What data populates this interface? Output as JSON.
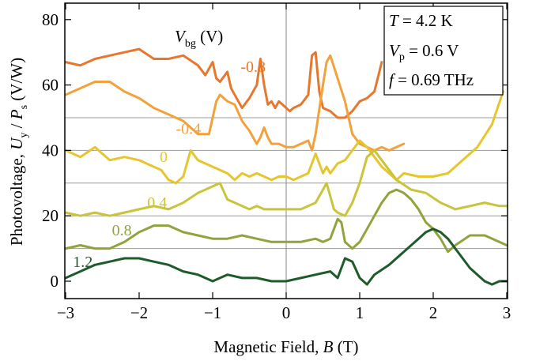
{
  "chart_data": {
    "type": "line",
    "xlabel_text": "Magnetic Field, ",
    "xlabel_var": "B",
    "xlabel_unit": " (T)",
    "ylabel_text": "Photovoltage, ",
    "ylabel_var1": "U",
    "ylabel_sub1": "y",
    "ylabel_sep": " / ",
    "ylabel_var2": "P",
    "ylabel_sub2": "s",
    "ylabel_unit": " (V/W)",
    "xlim": [
      -3,
      3
    ],
    "ylim": [
      -3,
      86
    ],
    "xticks": [
      -3,
      -2,
      -1,
      0,
      1,
      2,
      3
    ],
    "xtick_labels": [
      "−3",
      "−2",
      "−1",
      "0",
      "1",
      "2",
      "3"
    ],
    "yticks": [
      0,
      20,
      40,
      60,
      80
    ],
    "ytick_labels": [
      "0",
      "20",
      "40",
      "60",
      "80"
    ],
    "baselines": [
      10,
      20,
      30,
      40,
      50
    ],
    "legend_title_var": "V",
    "legend_title_sub": "bg",
    "legend_title_unit": " (V)",
    "params": [
      {
        "var": "T",
        "sub": "",
        "value": " = 4.2 K"
      },
      {
        "var": "V",
        "sub": "p",
        "value": " = 0.6 V"
      },
      {
        "var": "f",
        "sub": "",
        "value": " = 0.69 THz"
      }
    ],
    "series": [
      {
        "name": "-0.8",
        "color": "#e8772e",
        "label_at": [
          -0.62,
          64
        ],
        "x": [
          -3,
          -2.8,
          -2.6,
          -2.4,
          -2.2,
          -2.0,
          -1.8,
          -1.6,
          -1.4,
          -1.2,
          -1.1,
          -1.0,
          -0.95,
          -0.9,
          -0.8,
          -0.75,
          -0.7,
          -0.6,
          -0.5,
          -0.4,
          -0.35,
          -0.3,
          -0.25,
          -0.2,
          -0.15,
          -0.1,
          -0.05,
          0,
          0.05,
          0.1,
          0.2,
          0.3,
          0.35,
          0.4,
          0.45,
          0.5,
          0.6,
          0.7,
          0.8,
          0.9,
          1.0,
          1.1,
          1.2,
          1.3
        ],
        "y": [
          67,
          66,
          68,
          69,
          70,
          71,
          68,
          68,
          69,
          66,
          63,
          67,
          62,
          61,
          64,
          59,
          57,
          53,
          56,
          60,
          68,
          60,
          54,
          55,
          53,
          55,
          54,
          53,
          52,
          53,
          54,
          57,
          69,
          70,
          58,
          53,
          52,
          50,
          50,
          52,
          55,
          56,
          58,
          67
        ]
      },
      {
        "name": "-0.4",
        "color": "#f2a23c",
        "label_at": [
          -1.5,
          45
        ],
        "x": [
          -3,
          -2.8,
          -2.6,
          -2.4,
          -2.2,
          -2.0,
          -1.8,
          -1.6,
          -1.4,
          -1.2,
          -1.05,
          -1.0,
          -0.95,
          -0.9,
          -0.8,
          -0.7,
          -0.6,
          -0.5,
          -0.4,
          -0.35,
          -0.3,
          -0.25,
          -0.2,
          -0.1,
          0,
          0.1,
          0.2,
          0.3,
          0.35,
          0.4,
          0.5,
          0.55,
          0.6,
          0.7,
          0.8,
          0.9,
          1.0,
          1.1,
          1.2,
          1.3,
          1.4,
          1.5,
          1.6
        ],
        "y": [
          57,
          59,
          61,
          61,
          58,
          56,
          53,
          51,
          49,
          45,
          45,
          50,
          55,
          57,
          55,
          54,
          49,
          46,
          42,
          44,
          47,
          44,
          42,
          42,
          41,
          41,
          42,
          43,
          40,
          45,
          60,
          67,
          69,
          62,
          55,
          45,
          42,
          41,
          40,
          41,
          40,
          41,
          42
        ]
      },
      {
        "name": "0",
        "color": "#e6c62e",
        "label_at": [
          -1.72,
          36.5
        ],
        "x": [
          -3,
          -2.8,
          -2.6,
          -2.4,
          -2.2,
          -2.0,
          -1.9,
          -1.8,
          -1.7,
          -1.6,
          -1.5,
          -1.4,
          -1.3,
          -1.2,
          -1.1,
          -1.0,
          -0.9,
          -0.8,
          -0.7,
          -0.6,
          -0.5,
          -0.4,
          -0.3,
          -0.2,
          -0.1,
          0,
          0.1,
          0.2,
          0.3,
          0.4,
          0.5,
          0.55,
          0.6,
          0.7,
          0.8,
          0.9,
          1.0,
          1.1,
          1.2,
          1.3,
          1.4,
          1.5,
          1.6,
          1.8,
          2.0,
          2.2,
          2.4,
          2.6,
          2.8,
          2.95
        ],
        "y": [
          40,
          38,
          41,
          37,
          38,
          37,
          36,
          35,
          34,
          31,
          30,
          32,
          40,
          37,
          36,
          35,
          34,
          33,
          31,
          33,
          32,
          33,
          32,
          31,
          32,
          32,
          31,
          32,
          33,
          39,
          33,
          35,
          33,
          36,
          37,
          40,
          43,
          41,
          38,
          35,
          33,
          31,
          33,
          32,
          32,
          33,
          37,
          41,
          48,
          58
        ]
      },
      {
        "name": "0.4",
        "color": "#c9c43a",
        "label_at": [
          -1.89,
          22.5
        ],
        "x": [
          -3,
          -2.8,
          -2.6,
          -2.4,
          -2.2,
          -2.0,
          -1.8,
          -1.6,
          -1.4,
          -1.2,
          -1.1,
          -1.0,
          -0.9,
          -0.8,
          -0.7,
          -0.6,
          -0.5,
          -0.4,
          -0.3,
          -0.2,
          -0.1,
          0,
          0.1,
          0.2,
          0.3,
          0.4,
          0.5,
          0.55,
          0.6,
          0.65,
          0.7,
          0.8,
          0.9,
          1.0,
          1.1,
          1.2,
          1.3,
          1.5,
          1.7,
          1.9,
          2.1,
          2.3,
          2.5,
          2.7,
          2.9,
          3.0
        ],
        "y": [
          21,
          20,
          21,
          20,
          21,
          22,
          23,
          22,
          24,
          27,
          28,
          29,
          30,
          25,
          24,
          23,
          22,
          23,
          22,
          22,
          22,
          22,
          22,
          22,
          23,
          24,
          28,
          30,
          26,
          22,
          21,
          20,
          24,
          30,
          38,
          40,
          37,
          31,
          28,
          27,
          24,
          22,
          23,
          24,
          23,
          23
        ]
      },
      {
        "name": "0.8",
        "color": "#8fa43c",
        "label_at": [
          -2.37,
          14
        ],
        "x": [
          -3,
          -2.8,
          -2.6,
          -2.4,
          -2.2,
          -2.0,
          -1.8,
          -1.6,
          -1.4,
          -1.2,
          -1.0,
          -0.8,
          -0.6,
          -0.4,
          -0.2,
          0,
          0.2,
          0.4,
          0.5,
          0.6,
          0.7,
          0.75,
          0.8,
          0.9,
          1.0,
          1.1,
          1.2,
          1.3,
          1.4,
          1.5,
          1.6,
          1.7,
          1.8,
          1.9,
          2.0,
          2.1,
          2.2,
          2.3,
          2.5,
          2.7,
          2.9,
          3.0
        ],
        "y": [
          10,
          11,
          10,
          10,
          12,
          15,
          17,
          17,
          15,
          14,
          13,
          13,
          14,
          13,
          12,
          12,
          12,
          13,
          12,
          13,
          19,
          18,
          12,
          10,
          12,
          16,
          20,
          24,
          27,
          28,
          27,
          25,
          22,
          18,
          16,
          13,
          9,
          11,
          14,
          14,
          12,
          11
        ]
      },
      {
        "name": "1.2",
        "color": "#1e5b2b",
        "label_at": [
          -2.9,
          4.3
        ],
        "x": [
          -3,
          -2.8,
          -2.6,
          -2.4,
          -2.2,
          -2.0,
          -1.8,
          -1.6,
          -1.4,
          -1.2,
          -1.0,
          -0.8,
          -0.6,
          -0.4,
          -0.2,
          0,
          0.2,
          0.4,
          0.6,
          0.7,
          0.8,
          0.9,
          1.0,
          1.1,
          1.2,
          1.4,
          1.6,
          1.8,
          1.9,
          2.0,
          2.1,
          2.2,
          2.3,
          2.4,
          2.5,
          2.6,
          2.7,
          2.8,
          2.9,
          3.0
        ],
        "y": [
          1,
          3,
          5,
          6,
          7,
          7,
          6,
          5,
          3,
          2,
          0,
          2,
          1,
          1,
          0,
          0,
          1,
          2,
          3,
          1,
          7,
          6,
          1,
          -1,
          2,
          5,
          9,
          13,
          15,
          16,
          15,
          13,
          10,
          7,
          4,
          2,
          0,
          -1,
          0,
          0
        ]
      }
    ]
  }
}
